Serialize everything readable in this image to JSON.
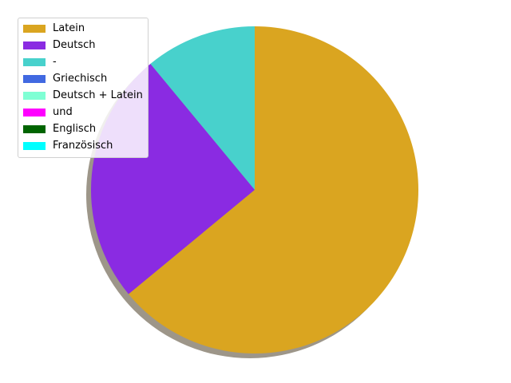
{
  "chart_data": {
    "type": "pie",
    "shadow": true,
    "start_angle_deg": 90,
    "direction": "clockwise",
    "legend_position": "top-left",
    "categories": [
      "Latein",
      "Deutsch",
      "-",
      "Griechisch",
      "Deutsch + Latein",
      "und",
      "Englisch",
      "Französisch"
    ],
    "values": [
      64,
      25,
      11,
      0,
      0,
      0,
      0,
      0
    ],
    "colors": [
      "#DAA520",
      "#8A2BE2",
      "#48D1CC",
      "#4169E1",
      "#7FFFD4",
      "#FF00FF",
      "#006400",
      "#00FFFF"
    ],
    "drawing_order": [
      2,
      1,
      0
    ]
  }
}
